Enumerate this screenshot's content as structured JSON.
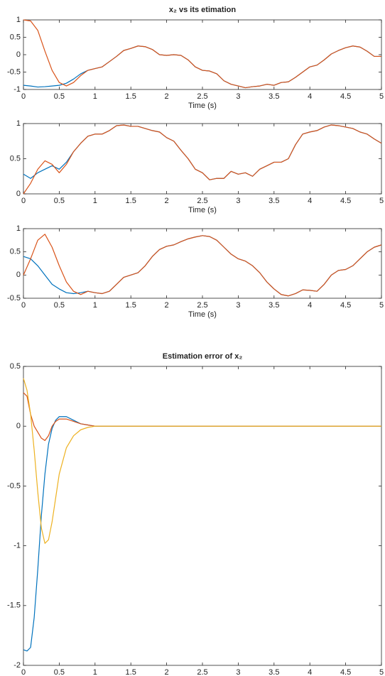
{
  "chart_data": [
    {
      "type": "line",
      "title": "x₂ vs its etimation",
      "xlabel": "Time (s)",
      "x": [
        0,
        0.1,
        0.2,
        0.3,
        0.4,
        0.5,
        0.6,
        0.7,
        0.8,
        0.9,
        1,
        1.1,
        1.2,
        1.3,
        1.4,
        1.5,
        1.6,
        1.7,
        1.8,
        1.9,
        2,
        2.1,
        2.2,
        2.3,
        2.4,
        2.5,
        2.6,
        2.7,
        2.8,
        2.9,
        3,
        3.1,
        3.2,
        3.3,
        3.4,
        3.5,
        3.6,
        3.7,
        3.8,
        3.9,
        4,
        4.1,
        4.2,
        4.3,
        4.4,
        4.5,
        4.6,
        4.7,
        4.8,
        4.9,
        5
      ],
      "series": [
        {
          "color": "#0072bd",
          "values": [
            -0.88,
            -0.9,
            -0.93,
            -0.92,
            -0.9,
            -0.88,
            -0.82,
            -0.7,
            -0.55,
            -0.45,
            -0.4,
            -0.35,
            -0.2,
            -0.05,
            0.12,
            0.18,
            0.25,
            0.23,
            0.15,
            0,
            -0.02,
            0,
            -0.02,
            -0.15,
            -0.35,
            -0.45,
            -0.47,
            -0.55,
            -0.75,
            -0.85,
            -0.9,
            -0.95,
            -0.92,
            -0.9,
            -0.85,
            -0.88,
            -0.8,
            -0.78,
            -0.65,
            -0.5,
            -0.35,
            -0.3,
            -0.15,
            0.02,
            0.12,
            0.2,
            0.25,
            0.22,
            0.1,
            -0.05,
            -0.05
          ]
        },
        {
          "color": "#d95319",
          "values": [
            1,
            0.97,
            0.7,
            0.1,
            -0.45,
            -0.8,
            -0.9,
            -0.8,
            -0.6,
            -0.45,
            -0.4,
            -0.35,
            -0.2,
            -0.05,
            0.12,
            0.18,
            0.25,
            0.23,
            0.15,
            0,
            -0.02,
            0,
            -0.02,
            -0.15,
            -0.35,
            -0.45,
            -0.47,
            -0.55,
            -0.75,
            -0.85,
            -0.9,
            -0.95,
            -0.92,
            -0.9,
            -0.85,
            -0.88,
            -0.8,
            -0.78,
            -0.65,
            -0.5,
            -0.35,
            -0.3,
            -0.15,
            0.02,
            0.12,
            0.2,
            0.25,
            0.22,
            0.1,
            -0.05,
            -0.05
          ]
        }
      ],
      "xlim": [
        0,
        5
      ],
      "xticks": [
        0,
        0.5,
        1,
        1.5,
        2,
        2.5,
        3,
        3.5,
        4,
        4.5,
        5
      ],
      "ylim": [
        -1,
        1
      ],
      "yticks": [
        -1,
        -0.5,
        0,
        0.5,
        1
      ]
    },
    {
      "type": "line",
      "xlabel": "Time (s)",
      "x": [
        0,
        0.1,
        0.2,
        0.3,
        0.4,
        0.5,
        0.6,
        0.7,
        0.8,
        0.9,
        1,
        1.1,
        1.2,
        1.3,
        1.4,
        1.5,
        1.6,
        1.7,
        1.8,
        1.9,
        2,
        2.1,
        2.2,
        2.3,
        2.4,
        2.5,
        2.6,
        2.7,
        2.8,
        2.9,
        3,
        3.1,
        3.2,
        3.3,
        3.4,
        3.5,
        3.6,
        3.7,
        3.8,
        3.9,
        4,
        4.1,
        4.2,
        4.3,
        4.4,
        4.5,
        4.6,
        4.7,
        4.8,
        4.9,
        5
      ],
      "series": [
        {
          "color": "#0072bd",
          "values": [
            0.28,
            0.22,
            0.3,
            0.35,
            0.4,
            0.35,
            0.45,
            0.6,
            0.72,
            0.82,
            0.85,
            0.85,
            0.9,
            0.97,
            0.98,
            0.96,
            0.96,
            0.93,
            0.9,
            0.88,
            0.8,
            0.75,
            0.62,
            0.5,
            0.35,
            0.3,
            0.2,
            0.22,
            0.22,
            0.32,
            0.28,
            0.3,
            0.25,
            0.35,
            0.4,
            0.45,
            0.45,
            0.5,
            0.7,
            0.85,
            0.88,
            0.9,
            0.95,
            0.98,
            0.97,
            0.95,
            0.93,
            0.88,
            0.85,
            0.78,
            0.72
          ]
        },
        {
          "color": "#d95319",
          "values": [
            0,
            0.15,
            0.35,
            0.47,
            0.42,
            0.3,
            0.42,
            0.6,
            0.72,
            0.82,
            0.85,
            0.85,
            0.9,
            0.97,
            0.98,
            0.96,
            0.96,
            0.93,
            0.9,
            0.88,
            0.8,
            0.75,
            0.62,
            0.5,
            0.35,
            0.3,
            0.2,
            0.22,
            0.22,
            0.32,
            0.28,
            0.3,
            0.25,
            0.35,
            0.4,
            0.45,
            0.45,
            0.5,
            0.7,
            0.85,
            0.88,
            0.9,
            0.95,
            0.98,
            0.97,
            0.95,
            0.93,
            0.88,
            0.85,
            0.78,
            0.72
          ]
        }
      ],
      "xlim": [
        0,
        5
      ],
      "xticks": [
        0,
        0.5,
        1,
        1.5,
        2,
        2.5,
        3,
        3.5,
        4,
        4.5,
        5
      ],
      "ylim": [
        0,
        1
      ],
      "yticks": [
        0,
        0.5,
        1
      ]
    },
    {
      "type": "line",
      "xlabel": "Time (s)",
      "x": [
        0,
        0.1,
        0.2,
        0.3,
        0.4,
        0.5,
        0.6,
        0.7,
        0.8,
        0.9,
        1,
        1.1,
        1.2,
        1.3,
        1.4,
        1.5,
        1.6,
        1.7,
        1.8,
        1.9,
        2,
        2.1,
        2.2,
        2.3,
        2.4,
        2.5,
        2.6,
        2.7,
        2.8,
        2.9,
        3,
        3.1,
        3.2,
        3.3,
        3.4,
        3.5,
        3.6,
        3.7,
        3.8,
        3.9,
        4,
        4.1,
        4.2,
        4.3,
        4.4,
        4.5,
        4.6,
        4.7,
        4.8,
        4.9,
        5
      ],
      "series": [
        {
          "color": "#0072bd",
          "values": [
            0.4,
            0.35,
            0.2,
            0,
            -0.2,
            -0.3,
            -0.38,
            -0.4,
            -0.38,
            -0.35,
            -0.38,
            -0.4,
            -0.35,
            -0.2,
            -0.05,
            0,
            0.05,
            0.2,
            0.4,
            0.55,
            0.62,
            0.65,
            0.72,
            0.78,
            0.82,
            0.85,
            0.83,
            0.75,
            0.6,
            0.45,
            0.35,
            0.3,
            0.2,
            0.05,
            -0.15,
            -0.3,
            -0.42,
            -0.45,
            -0.4,
            -0.32,
            -0.33,
            -0.35,
            -0.2,
            0,
            0.1,
            0.12,
            0.2,
            0.35,
            0.5,
            0.6,
            0.65
          ]
        },
        {
          "color": "#d95319",
          "values": [
            0,
            0.35,
            0.75,
            0.88,
            0.6,
            0.2,
            -0.15,
            -0.35,
            -0.42,
            -0.35,
            -0.38,
            -0.4,
            -0.35,
            -0.2,
            -0.05,
            0,
            0.05,
            0.2,
            0.4,
            0.55,
            0.62,
            0.65,
            0.72,
            0.78,
            0.82,
            0.85,
            0.83,
            0.75,
            0.6,
            0.45,
            0.35,
            0.3,
            0.2,
            0.05,
            -0.15,
            -0.3,
            -0.42,
            -0.45,
            -0.4,
            -0.32,
            -0.33,
            -0.35,
            -0.2,
            0,
            0.1,
            0.12,
            0.2,
            0.35,
            0.5,
            0.6,
            0.65
          ]
        }
      ],
      "xlim": [
        0,
        5
      ],
      "xticks": [
        0,
        0.5,
        1,
        1.5,
        2,
        2.5,
        3,
        3.5,
        4,
        4.5,
        5
      ],
      "ylim": [
        -0.5,
        1
      ],
      "yticks": [
        -0.5,
        0,
        0.5,
        1
      ]
    },
    {
      "type": "line",
      "title": "Estimation error of x₂",
      "xlabel": "Time (s)",
      "x": [
        0,
        0.05,
        0.1,
        0.15,
        0.2,
        0.25,
        0.3,
        0.35,
        0.4,
        0.45,
        0.5,
        0.6,
        0.7,
        0.8,
        0.9,
        1,
        1.2,
        1.5,
        2,
        3,
        4,
        5
      ],
      "series": [
        {
          "color": "#0072bd",
          "values": [
            -1.87,
            -1.88,
            -1.85,
            -1.6,
            -1.2,
            -0.75,
            -0.4,
            -0.15,
            -0.02,
            0.05,
            0.08,
            0.08,
            0.05,
            0.02,
            0.01,
            0,
            0,
            0,
            0,
            0,
            0,
            0
          ]
        },
        {
          "color": "#d95319",
          "values": [
            0.28,
            0.25,
            0.1,
            0,
            -0.05,
            -0.1,
            -0.12,
            -0.08,
            0,
            0.04,
            0.06,
            0.06,
            0.04,
            0.02,
            0.01,
            0,
            0,
            0,
            0,
            0,
            0,
            0
          ]
        },
        {
          "color": "#edb120",
          "values": [
            0.4,
            0.3,
            0.1,
            -0.2,
            -0.55,
            -0.85,
            -0.98,
            -0.95,
            -0.8,
            -0.6,
            -0.4,
            -0.18,
            -0.08,
            -0.03,
            -0.01,
            0,
            0,
            0,
            0,
            0,
            0,
            0
          ]
        }
      ],
      "xlim": [
        0,
        5
      ],
      "xticks": [
        0,
        0.5,
        1,
        1.5,
        2,
        2.5,
        3,
        3.5,
        4,
        4.5,
        5
      ],
      "ylim": [
        -2,
        0.5
      ],
      "yticks": [
        -2,
        -1.5,
        -1,
        -0.5,
        0,
        0.5
      ]
    }
  ]
}
